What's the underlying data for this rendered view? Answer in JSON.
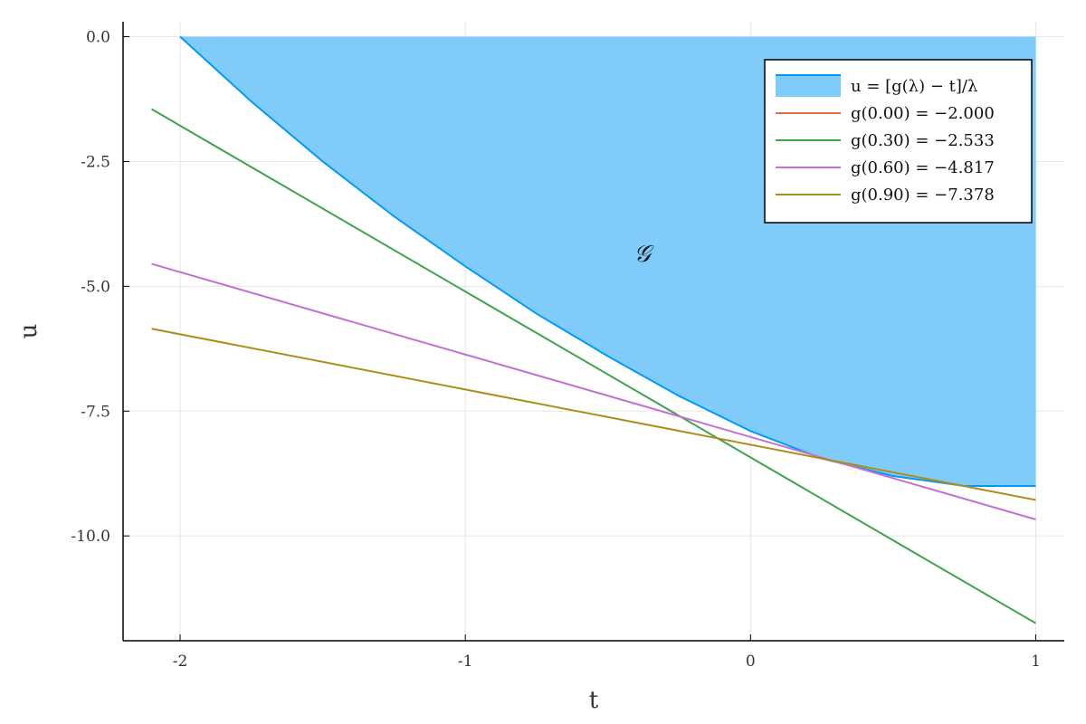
{
  "chart_data": {
    "type": "line",
    "title": "",
    "xlabel": "t",
    "ylabel": "u",
    "xlim": [
      -2.2,
      1.1
    ],
    "ylim": [
      -12.1,
      0.3
    ],
    "grid": true,
    "legend_position": "top-right",
    "x_ticks": [
      -2,
      -1,
      0,
      1
    ],
    "x_tick_labels": [
      "-2",
      "-1",
      "0",
      "1"
    ],
    "y_ticks": [
      0.0,
      -2.5,
      -5.0,
      -7.5,
      -10.0
    ],
    "y_tick_labels": [
      "0.0",
      "-2.5",
      "-5.0",
      "-7.5",
      "-10.0"
    ],
    "region": {
      "name": "u = [g(λ) − t]/λ",
      "color": "#009af9",
      "fill_color": "#7fccfa",
      "x": [
        -2.0,
        -1.75,
        -1.5,
        -1.25,
        -1.0,
        -0.75,
        -0.5,
        -0.25,
        0.0,
        0.25,
        0.5,
        0.75,
        1.0
      ],
      "y": [
        0.0,
        -1.3,
        -2.5,
        -3.6,
        -4.6,
        -5.55,
        -6.4,
        -7.2,
        -7.9,
        -8.45,
        -8.8,
        -9.0,
        -9.0
      ],
      "upper": 0.0
    },
    "series": [
      {
        "name": "g(0.00) = −2.000",
        "color": "#e26f46",
        "x": [],
        "y": []
      },
      {
        "name": "g(0.30) = −2.533",
        "color": "#3da44d",
        "x": [
          -2.1,
          1.0
        ],
        "y": [
          -1.45,
          -11.75
        ]
      },
      {
        "name": "g(0.60) = −4.817",
        "color": "#c271d2",
        "x": [
          -2.1,
          1.0
        ],
        "y": [
          -4.55,
          -9.67
        ]
      },
      {
        "name": "g(0.90) = −7.378",
        "color": "#ac8e18",
        "x": [
          -2.1,
          1.0
        ],
        "y": [
          -5.85,
          -9.28
        ]
      }
    ],
    "annotations": [
      {
        "text": "𝒢",
        "x": -0.38,
        "y": -4.5
      }
    ]
  }
}
